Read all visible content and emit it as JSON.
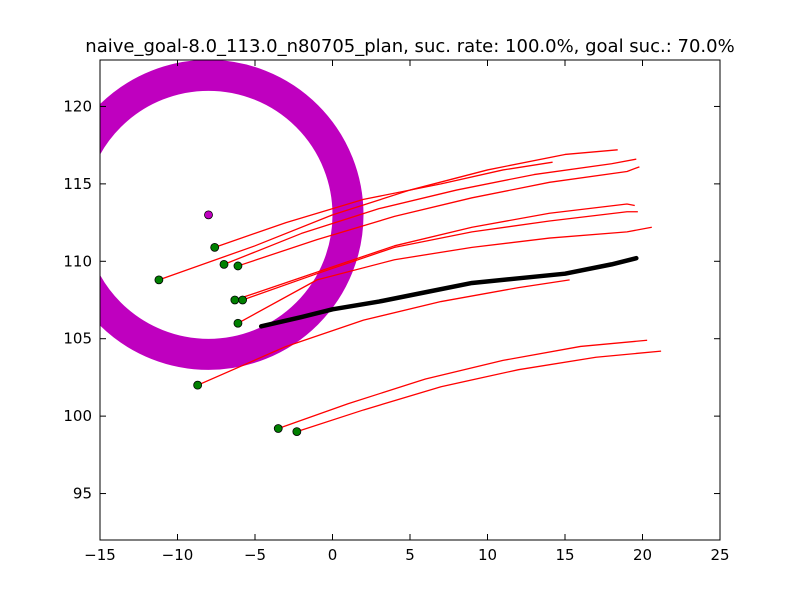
{
  "chart_data": {
    "type": "line",
    "title": "naive_goal-8.0_113.0_n80705_plan, suc. rate: 100.0%, goal suc.: 70.0%",
    "xlabel": "",
    "ylabel": "",
    "xlim": [
      -15,
      25
    ],
    "ylim": [
      92,
      123
    ],
    "xticks": [
      -15,
      -10,
      -5,
      0,
      5,
      10,
      15,
      20,
      25
    ],
    "yticks": [
      95,
      100,
      105,
      110,
      115,
      120
    ],
    "grid": false,
    "goal_region": {
      "center": [
        -8.0,
        113.0
      ],
      "outer_radius": 10.0,
      "inner_radius": 8.0,
      "color": "#bf00bf"
    },
    "goal_point": {
      "x": -8.0,
      "y": 113.0,
      "color": "#bf00bf"
    },
    "start_points": [
      {
        "x": -11.2,
        "y": 108.8
      },
      {
        "x": -7.6,
        "y": 110.9
      },
      {
        "x": -7.0,
        "y": 109.8
      },
      {
        "x": -6.1,
        "y": 109.7
      },
      {
        "x": -6.3,
        "y": 107.5
      },
      {
        "x": -5.8,
        "y": 107.5
      },
      {
        "x": -6.1,
        "y": 106.0
      },
      {
        "x": -8.7,
        "y": 102.0
      },
      {
        "x": -3.5,
        "y": 99.2
      },
      {
        "x": -2.3,
        "y": 99.0
      }
    ],
    "start_point_color": "#008000",
    "trajectory_color": "#ff0000",
    "trajectories": [
      {
        "x": [
          -11.2,
          -5,
          0,
          5,
          10,
          15,
          18.4
        ],
        "y": [
          108.8,
          111.0,
          113.0,
          114.6,
          115.9,
          116.9,
          117.2
        ]
      },
      {
        "x": [
          -7.6,
          -3,
          2,
          7,
          11,
          14.2
        ],
        "y": [
          110.9,
          112.5,
          114.0,
          115.0,
          115.9,
          116.4
        ]
      },
      {
        "x": [
          -7.0,
          -2,
          3,
          8,
          13,
          18,
          19.6
        ],
        "y": [
          109.8,
          111.8,
          113.4,
          114.6,
          115.6,
          116.3,
          116.6
        ]
      },
      {
        "x": [
          -6.1,
          -1,
          4,
          9,
          14,
          19,
          19.8
        ],
        "y": [
          109.7,
          111.4,
          112.9,
          114.1,
          115.1,
          115.8,
          116.1
        ]
      },
      {
        "x": [
          -6.3,
          -1,
          4,
          9,
          14,
          19,
          19.5
        ],
        "y": [
          107.5,
          109.3,
          111.0,
          112.2,
          113.1,
          113.7,
          113.6
        ]
      },
      {
        "x": [
          -5.8,
          -1,
          4,
          9,
          14,
          19,
          19.7
        ],
        "y": [
          107.5,
          109.2,
          110.9,
          111.9,
          112.6,
          113.2,
          113.2
        ]
      },
      {
        "x": [
          -6.1,
          -1,
          4,
          9,
          14,
          19,
          20.6
        ],
        "y": [
          106.0,
          108.8,
          110.1,
          110.9,
          111.5,
          111.9,
          112.2
        ]
      },
      {
        "x": [
          -8.7,
          -3,
          2,
          7,
          12,
          15.3
        ],
        "y": [
          102.0,
          104.5,
          106.2,
          107.4,
          108.3,
          108.8
        ]
      },
      {
        "x": [
          -3.5,
          1,
          6,
          11,
          16,
          20.3
        ],
        "y": [
          99.2,
          100.8,
          102.4,
          103.6,
          104.5,
          104.9
        ]
      },
      {
        "x": [
          -2.3,
          2,
          7,
          12,
          17,
          21.2
        ],
        "y": [
          99.0,
          100.4,
          101.9,
          103.0,
          103.8,
          104.2
        ]
      }
    ],
    "plan_path": {
      "color": "#000000",
      "x": [
        -4.6,
        -2,
        0,
        3,
        6,
        9,
        12,
        15,
        18,
        19.6
      ],
      "y": [
        105.8,
        106.4,
        106.9,
        107.4,
        108.0,
        108.6,
        108.9,
        109.2,
        109.8,
        110.2
      ]
    }
  }
}
